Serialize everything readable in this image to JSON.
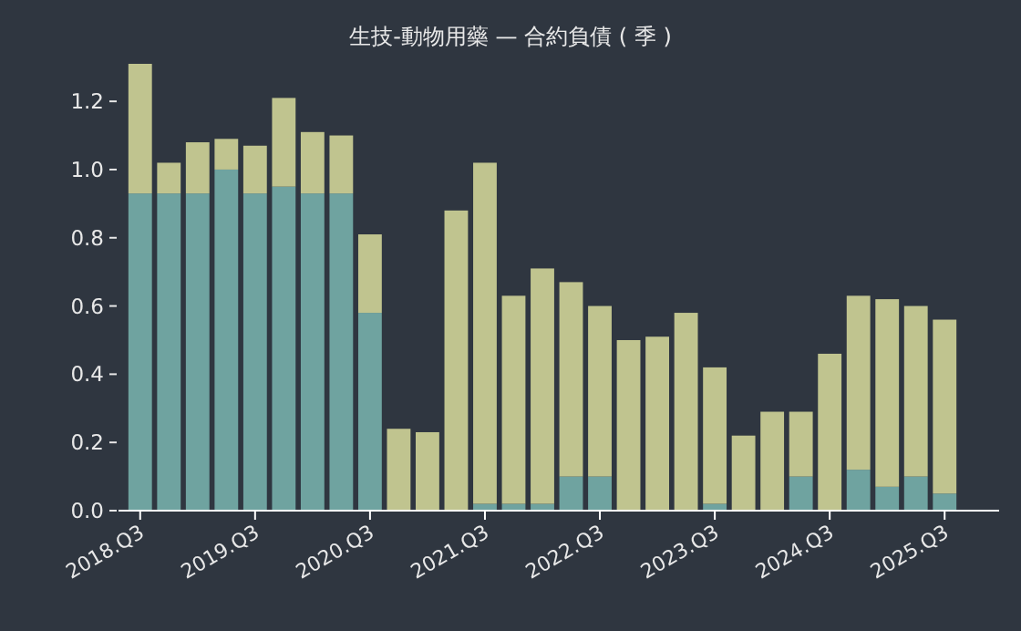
{
  "chart_data": {
    "type": "bar",
    "title": "生技-動物用藥 — 合約負債 ( 季 )",
    "categories": [
      "2018.Q3",
      null,
      null,
      null,
      "2019.Q3",
      null,
      null,
      null,
      "2020.Q3",
      null,
      null,
      null,
      "2021.Q3",
      null,
      null,
      null,
      "2022.Q3",
      null,
      null,
      null,
      "2023.Q3",
      null,
      null,
      null,
      "2024.Q3",
      null,
      null,
      null,
      "2025.Q3"
    ],
    "stacked": true,
    "series": [
      {
        "color": "#6fa3a0",
        "values": [
          0.93,
          0.93,
          0.93,
          1.0,
          0.93,
          0.95,
          0.93,
          0.93,
          0.58,
          0,
          0,
          0,
          0.02,
          0.02,
          0.02,
          0.1,
          0.1,
          0,
          0,
          0,
          0.02,
          0,
          0,
          0.1,
          0,
          0.12,
          0.07,
          0.1,
          0.05
        ]
      },
      {
        "color": "#c0c48f",
        "values": [
          0.38,
          0.09,
          0.15,
          0.09,
          0.14,
          0.26,
          0.18,
          0.17,
          0.23,
          0.24,
          0.23,
          0.88,
          1.0,
          0.61,
          0.69,
          0.57,
          0.5,
          0.5,
          0.51,
          0.58,
          0.4,
          0.22,
          0.29,
          0.19,
          0.46,
          0.51,
          0.55,
          0.5,
          0.51
        ]
      }
    ],
    "yticks": [
      {
        "value": 0,
        "label": "0.0"
      },
      {
        "value": 0.2,
        "label": "0.2"
      },
      {
        "value": 0.4,
        "label": "0.4"
      },
      {
        "value": 0.6,
        "label": "0.6"
      },
      {
        "value": 0.8,
        "label": "0.8"
      },
      {
        "value": 1.0,
        "label": "1.0"
      },
      {
        "value": 1.2,
        "label": "1.2"
      }
    ],
    "ylim": [
      0,
      1.31
    ],
    "grid": false
  }
}
